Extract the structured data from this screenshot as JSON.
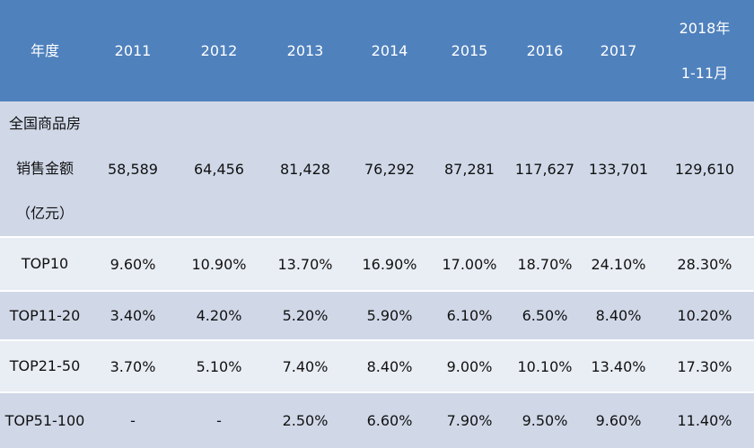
{
  "table": {
    "header": [
      [
        "年度"
      ],
      [
        "2011"
      ],
      [
        "2012"
      ],
      [
        "2013"
      ],
      [
        "2014"
      ],
      [
        "2015"
      ],
      [
        "2016"
      ],
      [
        "2017"
      ],
      [
        "2018年",
        "1-11月"
      ]
    ],
    "rows": [
      {
        "label": [
          "全国商品房",
          "销售金额",
          "（亿元）"
        ],
        "cells": [
          "58,589",
          "64,456",
          "81,428",
          "76,292",
          "87,281",
          "117,627",
          "133,701",
          "129,610"
        ]
      },
      {
        "label": [
          "TOP10"
        ],
        "cells": [
          "9.60%",
          "10.90%",
          "13.70%",
          "16.90%",
          "17.00%",
          "18.70%",
          "24.10%",
          "28.30%"
        ]
      },
      {
        "label": [
          "TOP11-20"
        ],
        "cells": [
          "3.40%",
          "4.20%",
          "5.20%",
          "5.90%",
          "6.10%",
          "6.50%",
          "8.40%",
          "10.20%"
        ]
      },
      {
        "label": [
          "TOP21-50"
        ],
        "cells": [
          "3.70%",
          "5.10%",
          "7.40%",
          "8.40%",
          "9.00%",
          "10.10%",
          "13.40%",
          "17.30%"
        ]
      },
      {
        "label": [
          "TOP51-100"
        ],
        "cells": [
          "-",
          "-",
          "2.50%",
          "6.60%",
          "7.90%",
          "9.50%",
          "9.60%",
          "11.40%"
        ]
      }
    ]
  }
}
